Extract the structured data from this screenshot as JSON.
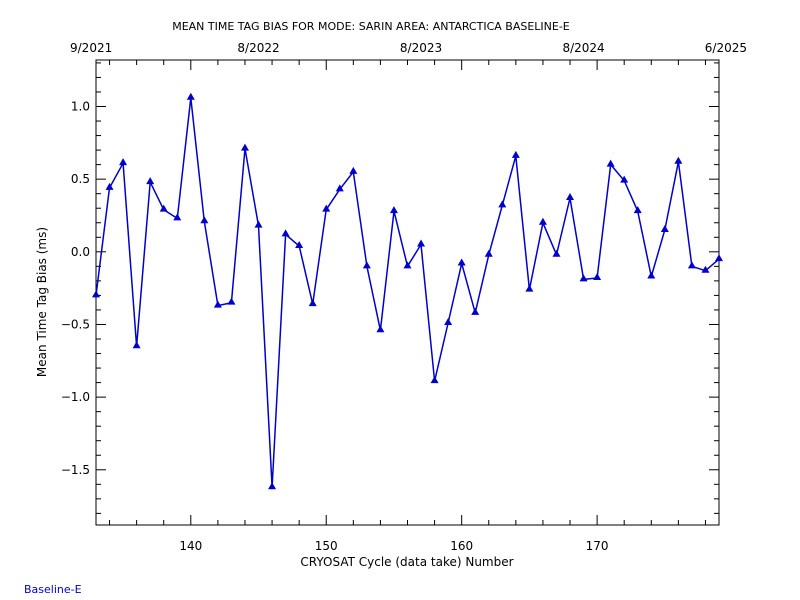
{
  "chart_data": {
    "type": "line",
    "title": "MEAN TIME TAG BIAS FOR MODE: SARIN AREA: ANTARCTICA BASELINE-E",
    "xlabel": "CRYOSAT Cycle (data take) Number",
    "ylabel": "Mean Time Tag Bias (ms)",
    "xlim": [
      133,
      179
    ],
    "ylim": [
      -1.88,
      1.32
    ],
    "x_ticks": [
      140,
      150,
      160,
      170
    ],
    "x_tick_labels": [
      "140",
      "150",
      "160",
      "170"
    ],
    "y_ticks": [
      -1.5,
      -1.0,
      -0.5,
      0.0,
      0.5,
      1.0
    ],
    "y_tick_labels": [
      "−1.5",
      "−1.0",
      "−0.5",
      "0.0",
      "0.5",
      "1.0"
    ],
    "top_axis": {
      "ticks": [
        133,
        145,
        157,
        169,
        179
      ],
      "labels": [
        "9/2021",
        "8/2022",
        "8/2023",
        "8/2024",
        "6/2025"
      ]
    },
    "grid": false,
    "color": "#0000cc",
    "marker": "triangle",
    "series": [
      {
        "name": "",
        "x": [
          133,
          134,
          135,
          136,
          137,
          138,
          139,
          140,
          141,
          142,
          143,
          144,
          145,
          146,
          147,
          148,
          149,
          150,
          151,
          152,
          153,
          154,
          155,
          156,
          157,
          158,
          159,
          160,
          161,
          162,
          163,
          164,
          165,
          166,
          167,
          168,
          169,
          170,
          171,
          172,
          173,
          174,
          175,
          176,
          177,
          178,
          179
        ],
        "y": [
          -0.3,
          0.44,
          0.61,
          -0.65,
          0.48,
          0.29,
          0.23,
          1.06,
          0.21,
          -0.37,
          -0.35,
          0.71,
          0.18,
          -1.62,
          0.12,
          0.04,
          -0.36,
          0.29,
          0.43,
          0.55,
          -0.1,
          -0.54,
          0.28,
          -0.1,
          0.05,
          -0.89,
          -0.49,
          -0.08,
          -0.42,
          -0.02,
          0.32,
          0.66,
          -0.26,
          0.2,
          -0.02,
          0.37,
          -0.19,
          -0.18,
          0.6,
          0.49,
          0.28,
          -0.17,
          0.15,
          0.62,
          -0.1,
          -0.13,
          -0.05
        ]
      }
    ]
  },
  "footer": "Baseline-E"
}
